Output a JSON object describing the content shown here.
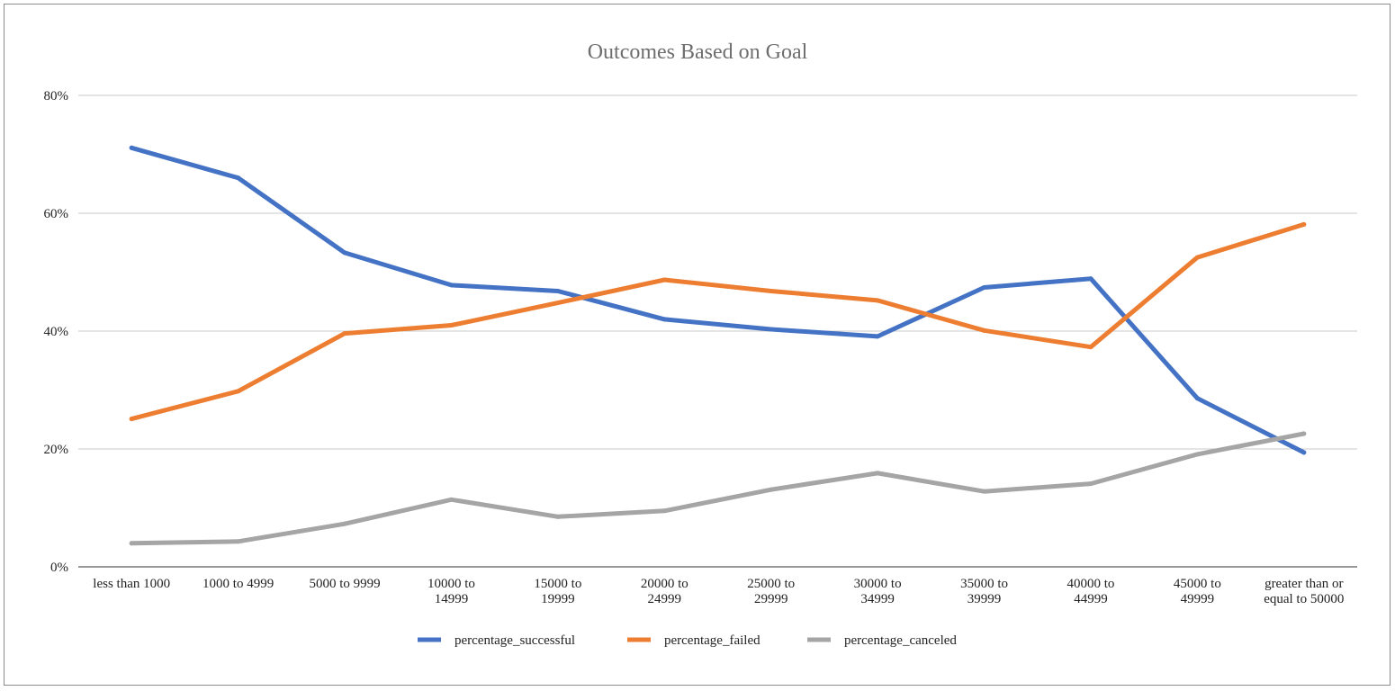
{
  "chart_data": {
    "type": "line",
    "title": "Outcomes Based on Goal",
    "xlabel": "",
    "ylabel": "",
    "categories": [
      "less than 1000",
      "1000 to 4999",
      "5000 to 9999",
      "10000 to 14999",
      "15000 to 19999",
      "20000 to 24999",
      "25000 to 29999",
      "30000 to 34999",
      "35000 to 39999",
      "40000 to 44999",
      "45000 to 49999",
      "greater than or equal to 50000"
    ],
    "category_lines": [
      [
        "less than 1000"
      ],
      [
        "1000 to 4999"
      ],
      [
        "5000 to 9999"
      ],
      [
        "10000 to",
        "14999"
      ],
      [
        "15000 to",
        "19999"
      ],
      [
        "20000 to",
        "24999"
      ],
      [
        "25000 to",
        "29999"
      ],
      [
        "30000 to",
        "34999"
      ],
      [
        "35000 to",
        "39999"
      ],
      [
        "40000 to",
        "44999"
      ],
      [
        "45000 to",
        "49999"
      ],
      [
        "greater than or",
        "equal to 50000"
      ]
    ],
    "ylim": [
      0,
      80
    ],
    "yticks": [
      0,
      20,
      40,
      60,
      80
    ],
    "ytick_labels": [
      "0%",
      "20%",
      "40%",
      "60%",
      "80%"
    ],
    "grid": true,
    "legend_position": "bottom",
    "series": [
      {
        "name": "percentage_successful",
        "color": "#4472c4",
        "values": [
          71.1,
          66.0,
          53.3,
          47.8,
          46.8,
          42.0,
          40.3,
          39.1,
          47.4,
          48.9,
          28.6,
          19.4
        ]
      },
      {
        "name": "percentage_failed",
        "color": "#ed7d31",
        "values": [
          25.1,
          29.8,
          39.6,
          41.0,
          44.8,
          48.7,
          46.8,
          45.2,
          40.1,
          37.3,
          52.5,
          58.1
        ]
      },
      {
        "name": "percentage_canceled",
        "color": "#a5a5a5",
        "values": [
          4.0,
          4.3,
          7.3,
          11.4,
          8.5,
          9.5,
          13.1,
          15.9,
          12.8,
          14.1,
          19.1,
          22.6
        ]
      }
    ]
  }
}
